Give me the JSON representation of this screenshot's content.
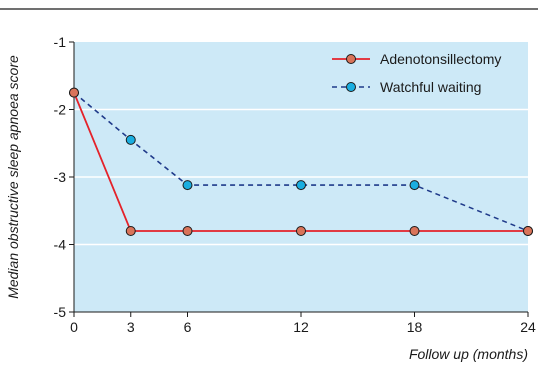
{
  "chart_data": {
    "type": "line",
    "xlabel": "Follow up (months)",
    "ylabel": "Median obstructive sleep apnoea score",
    "x": [
      0,
      3,
      6,
      12,
      18,
      24
    ],
    "xlim": [
      0,
      24
    ],
    "ylim": [
      -5,
      -1
    ],
    "yticks": [
      -1,
      -2,
      -3,
      -4,
      -5
    ],
    "grid": "horizontal",
    "legend_position": "top-right",
    "background": "#cde9f7",
    "series": [
      {
        "name": "Adenotonsillectomy",
        "values": [
          -1.75,
          -3.8,
          -3.8,
          -3.8,
          -3.8,
          -3.8
        ],
        "color": "#e4222a",
        "marker_fill": "#d9745a",
        "line_style": "solid"
      },
      {
        "name": "Watchful waiting",
        "values": [
          -1.75,
          -2.45,
          -3.12,
          -3.12,
          -3.12,
          -3.8
        ],
        "color": "#1f3a8a",
        "marker_fill": "#1aaee0",
        "line_style": "dashed"
      }
    ]
  }
}
